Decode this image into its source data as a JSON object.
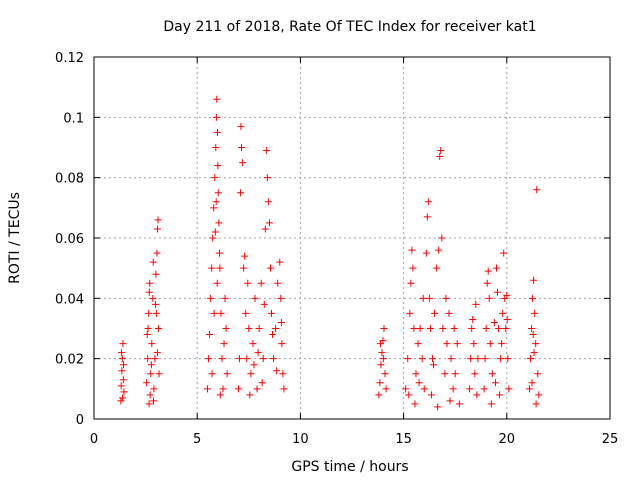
{
  "chart_data": {
    "type": "scatter",
    "title": "Day 211 of 2018, Rate Of TEC Index for receiver kat1",
    "xlabel": "GPS time / hours",
    "ylabel": "ROTI / TECUs",
    "xlim": [
      0,
      25
    ],
    "ylim": [
      0,
      0.12
    ],
    "xticks": [
      0,
      5,
      10,
      15,
      20,
      25
    ],
    "yticks": [
      0,
      0.02,
      0.04,
      0.06,
      0.08,
      0.1,
      0.12
    ],
    "xtick_labels": [
      "0",
      "5",
      "10",
      "15",
      "20",
      "25"
    ],
    "ytick_labels": [
      "0",
      "0.02",
      "0.04",
      "0.06",
      "0.08",
      "0.1",
      "0.12"
    ],
    "grid": true,
    "marker": "+",
    "series": [
      {
        "name": "ROTI",
        "color": "#ff0000",
        "points": [
          [
            1.3,
            0.006
          ],
          [
            1.32,
            0.011
          ],
          [
            1.35,
            0.016
          ],
          [
            1.37,
            0.02
          ],
          [
            1.4,
            0.025
          ],
          [
            1.42,
            0.013
          ],
          [
            1.45,
            0.009
          ],
          [
            1.33,
            0.022
          ],
          [
            1.38,
            0.007
          ],
          [
            1.43,
            0.018
          ],
          [
            2.55,
            0.012
          ],
          [
            2.6,
            0.02
          ],
          [
            2.62,
            0.03
          ],
          [
            2.65,
            0.035
          ],
          [
            2.7,
            0.045
          ],
          [
            2.72,
            0.008
          ],
          [
            2.75,
            0.015
          ],
          [
            2.8,
            0.025
          ],
          [
            2.85,
            0.04
          ],
          [
            2.9,
            0.01
          ],
          [
            2.95,
            0.02
          ],
          [
            3.0,
            0.048
          ],
          [
            3.05,
            0.055
          ],
          [
            3.08,
            0.063
          ],
          [
            3.1,
            0.066
          ],
          [
            3.12,
            0.03
          ],
          [
            3.15,
            0.015
          ],
          [
            2.67,
            0.005
          ],
          [
            2.87,
            0.052
          ],
          [
            3.02,
            0.035
          ],
          [
            2.58,
            0.028
          ],
          [
            2.78,
            0.018
          ],
          [
            2.98,
            0.038
          ],
          [
            3.07,
            0.022
          ],
          [
            2.88,
            0.006
          ],
          [
            2.68,
            0.042
          ],
          [
            5.5,
            0.01
          ],
          [
            5.55,
            0.02
          ],
          [
            5.6,
            0.028
          ],
          [
            5.65,
            0.04
          ],
          [
            5.7,
            0.05
          ],
          [
            5.75,
            0.06
          ],
          [
            5.8,
            0.07
          ],
          [
            5.85,
            0.08
          ],
          [
            5.9,
            0.09
          ],
          [
            5.93,
            0.1
          ],
          [
            5.95,
            0.106
          ],
          [
            5.98,
            0.095
          ],
          [
            6.0,
            0.084
          ],
          [
            6.02,
            0.075
          ],
          [
            6.05,
            0.065
          ],
          [
            6.1,
            0.05
          ],
          [
            6.15,
            0.035
          ],
          [
            6.2,
            0.02
          ],
          [
            6.25,
            0.01
          ],
          [
            6.3,
            0.025
          ],
          [
            6.35,
            0.04
          ],
          [
            6.4,
            0.03
          ],
          [
            6.45,
            0.015
          ],
          [
            5.88,
            0.062
          ],
          [
            5.92,
            0.072
          ],
          [
            5.97,
            0.045
          ],
          [
            6.08,
            0.055
          ],
          [
            6.12,
            0.008
          ],
          [
            5.72,
            0.015
          ],
          [
            5.82,
            0.035
          ],
          [
            7.0,
            0.01
          ],
          [
            7.05,
            0.02
          ],
          [
            7.1,
            0.075
          ],
          [
            7.12,
            0.097
          ],
          [
            7.15,
            0.09
          ],
          [
            7.2,
            0.085
          ],
          [
            7.25,
            0.05
          ],
          [
            7.3,
            0.054
          ],
          [
            7.35,
            0.035
          ],
          [
            7.4,
            0.02
          ],
          [
            7.45,
            0.045
          ],
          [
            7.5,
            0.03
          ],
          [
            7.6,
            0.015
          ],
          [
            7.7,
            0.025
          ],
          [
            7.8,
            0.04
          ],
          [
            7.9,
            0.01
          ],
          [
            8.0,
            0.03
          ],
          [
            8.1,
            0.045
          ],
          [
            8.2,
            0.02
          ],
          [
            8.3,
            0.063
          ],
          [
            8.35,
            0.089
          ],
          [
            8.4,
            0.08
          ],
          [
            8.45,
            0.072
          ],
          [
            8.5,
            0.065
          ],
          [
            8.55,
            0.05
          ],
          [
            8.6,
            0.035
          ],
          [
            8.7,
            0.02
          ],
          [
            8.8,
            0.03
          ],
          [
            8.9,
            0.045
          ],
          [
            9.0,
            0.052
          ],
          [
            9.05,
            0.04
          ],
          [
            9.1,
            0.025
          ],
          [
            9.15,
            0.015
          ],
          [
            9.2,
            0.01
          ],
          [
            7.55,
            0.008
          ],
          [
            7.75,
            0.018
          ],
          [
            7.95,
            0.022
          ],
          [
            8.15,
            0.012
          ],
          [
            8.25,
            0.038
          ],
          [
            8.65,
            0.028
          ],
          [
            8.85,
            0.016
          ],
          [
            9.08,
            0.032
          ],
          [
            13.8,
            0.008
          ],
          [
            13.85,
            0.012
          ],
          [
            13.9,
            0.018
          ],
          [
            13.95,
            0.022
          ],
          [
            14.0,
            0.026
          ],
          [
            14.05,
            0.03
          ],
          [
            14.1,
            0.015
          ],
          [
            14.15,
            0.01
          ],
          [
            13.88,
            0.025
          ],
          [
            14.02,
            0.02
          ],
          [
            15.1,
            0.01
          ],
          [
            15.2,
            0.02
          ],
          [
            15.3,
            0.035
          ],
          [
            15.35,
            0.045
          ],
          [
            15.4,
            0.056
          ],
          [
            15.45,
            0.05
          ],
          [
            15.5,
            0.03
          ],
          [
            15.6,
            0.015
          ],
          [
            15.7,
            0.025
          ],
          [
            15.8,
            0.03
          ],
          [
            15.9,
            0.02
          ],
          [
            16.0,
            0.01
          ],
          [
            16.1,
            0.055
          ],
          [
            16.15,
            0.067
          ],
          [
            16.2,
            0.072
          ],
          [
            16.25,
            0.04
          ],
          [
            16.3,
            0.03
          ],
          [
            16.4,
            0.02
          ],
          [
            16.5,
            0.035
          ],
          [
            16.6,
            0.05
          ],
          [
            16.7,
            0.056
          ],
          [
            16.75,
            0.087
          ],
          [
            16.8,
            0.089
          ],
          [
            16.85,
            0.06
          ],
          [
            16.9,
            0.03
          ],
          [
            17.0,
            0.015
          ],
          [
            17.1,
            0.025
          ],
          [
            17.2,
            0.035
          ],
          [
            17.3,
            0.02
          ],
          [
            17.4,
            0.01
          ],
          [
            17.5,
            0.015
          ],
          [
            17.6,
            0.025
          ],
          [
            17.7,
            0.005
          ],
          [
            15.25,
            0.008
          ],
          [
            15.55,
            0.005
          ],
          [
            15.75,
            0.012
          ],
          [
            15.95,
            0.04
          ],
          [
            16.35,
            0.008
          ],
          [
            16.45,
            0.018
          ],
          [
            16.65,
            0.004
          ],
          [
            17.05,
            0.04
          ],
          [
            17.25,
            0.006
          ],
          [
            17.45,
            0.03
          ],
          [
            18.2,
            0.01
          ],
          [
            18.25,
            0.02
          ],
          [
            18.3,
            0.03
          ],
          [
            18.35,
            0.033
          ],
          [
            18.4,
            0.025
          ],
          [
            18.45,
            0.015
          ],
          [
            18.5,
            0.038
          ],
          [
            18.55,
            0.008
          ],
          [
            18.6,
            0.02
          ],
          [
            18.9,
            0.01
          ],
          [
            18.95,
            0.02
          ],
          [
            19.0,
            0.03
          ],
          [
            19.05,
            0.045
          ],
          [
            19.1,
            0.049
          ],
          [
            19.15,
            0.04
          ],
          [
            19.2,
            0.025
          ],
          [
            19.3,
            0.015
          ],
          [
            19.4,
            0.032
          ],
          [
            19.5,
            0.05
          ],
          [
            19.55,
            0.042
          ],
          [
            19.6,
            0.03
          ],
          [
            19.7,
            0.02
          ],
          [
            19.8,
            0.035
          ],
          [
            19.85,
            0.055
          ],
          [
            19.9,
            0.04
          ],
          [
            19.95,
            0.03
          ],
          [
            20.0,
            0.041
          ],
          [
            20.05,
            0.02
          ],
          [
            20.1,
            0.01
          ],
          [
            19.25,
            0.005
          ],
          [
            19.45,
            0.012
          ],
          [
            19.65,
            0.008
          ],
          [
            19.75,
            0.025
          ],
          [
            20.02,
            0.033
          ],
          [
            21.1,
            0.01
          ],
          [
            21.15,
            0.02
          ],
          [
            21.2,
            0.03
          ],
          [
            21.25,
            0.04
          ],
          [
            21.3,
            0.046
          ],
          [
            21.35,
            0.035
          ],
          [
            21.4,
            0.025
          ],
          [
            21.45,
            0.076
          ],
          [
            21.5,
            0.015
          ],
          [
            21.55,
            0.008
          ],
          [
            21.22,
            0.012
          ],
          [
            21.32,
            0.022
          ],
          [
            21.42,
            0.005
          ],
          [
            21.28,
            0.028
          ]
        ]
      }
    ]
  }
}
